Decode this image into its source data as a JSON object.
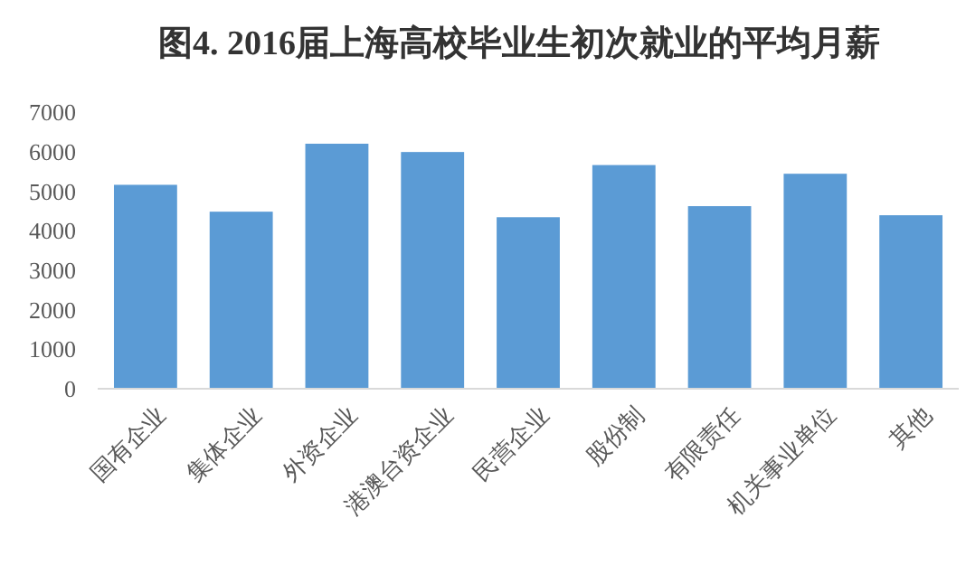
{
  "chart_data": {
    "type": "bar",
    "title": "图4. 2016届上海高校毕业生初次就业的平均月薪",
    "categories": [
      "国有企业",
      "集体企业",
      "外资企业",
      "港澳台资企业",
      "民营企业",
      "股份制",
      "有限责任",
      "机关事业单位",
      "其他"
    ],
    "values": [
      5160,
      4480,
      6200,
      5990,
      4340,
      5660,
      4620,
      5440,
      4390
    ],
    "color": "#5b9bd5",
    "ylim": [
      0,
      7000
    ],
    "yticks": [
      0,
      1000,
      2000,
      3000,
      4000,
      5000,
      6000,
      7000
    ]
  }
}
